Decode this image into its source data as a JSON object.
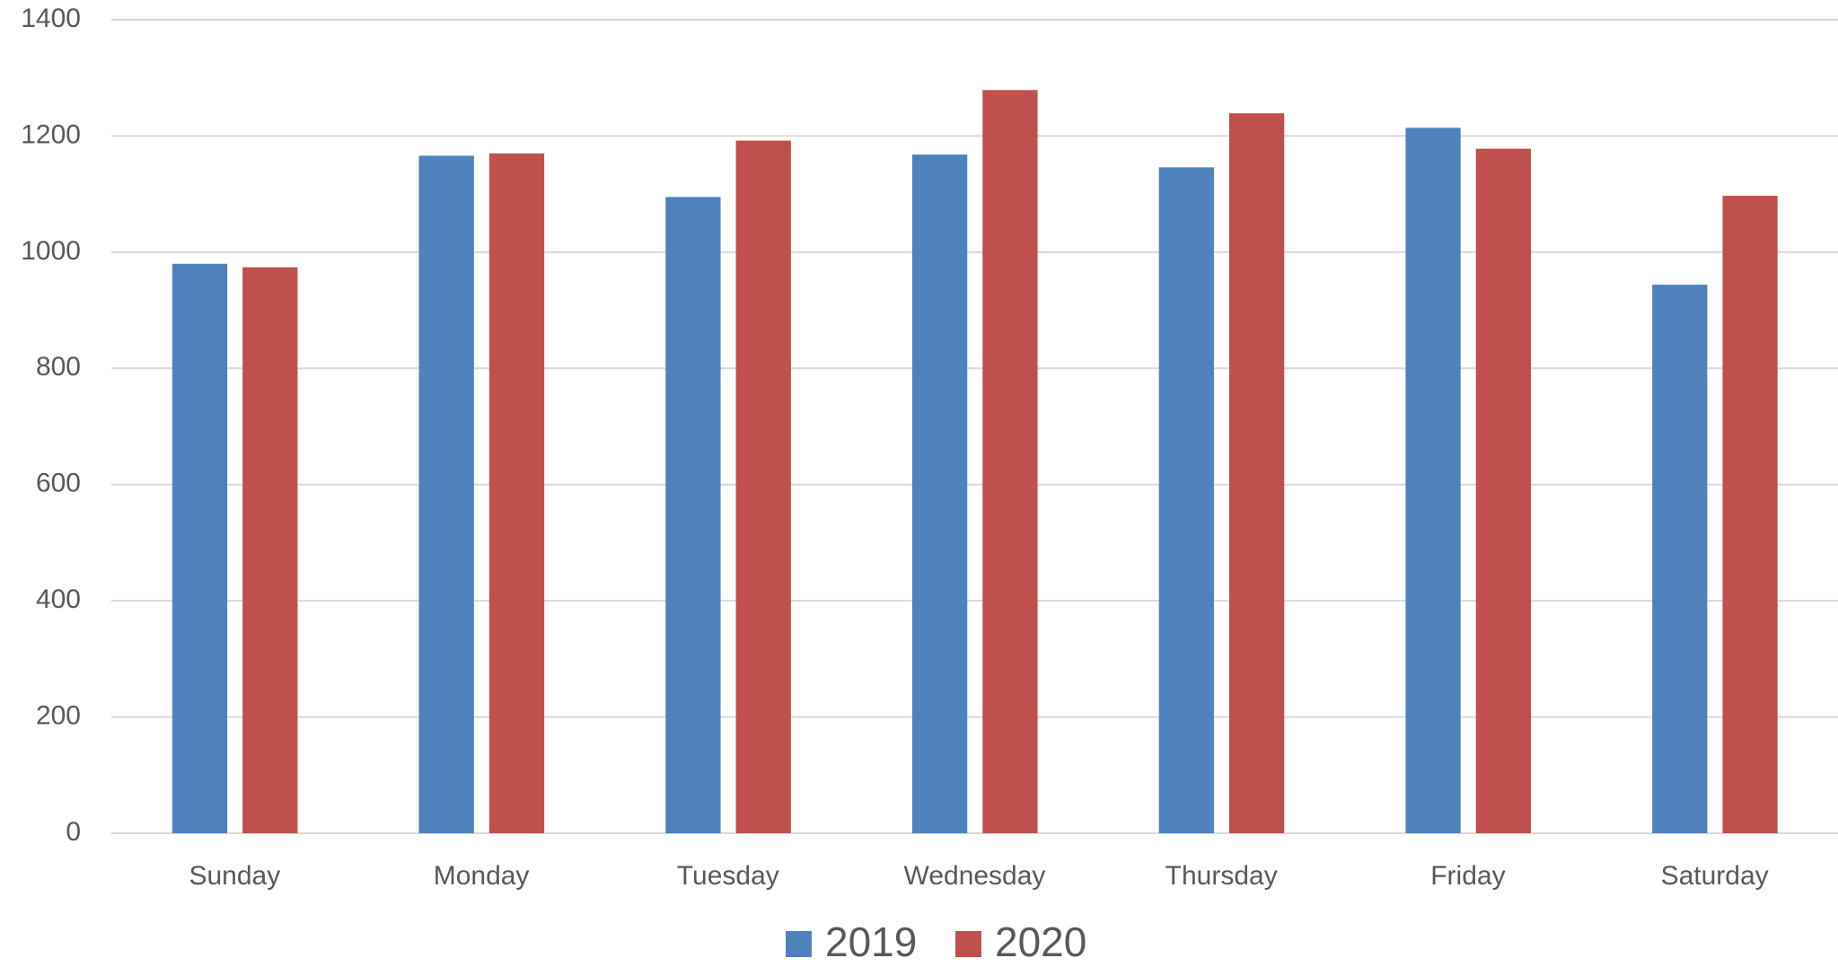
{
  "chart_data": {
    "type": "bar",
    "categories": [
      "Sunday",
      "Monday",
      "Tuesday",
      "Wednesday",
      "Thursday",
      "Friday",
      "Saturday"
    ],
    "series": [
      {
        "name": "2019",
        "color": "#4f81bd",
        "values": [
          980,
          1166,
          1095,
          1168,
          1146,
          1214,
          944
        ]
      },
      {
        "name": "2020",
        "color": "#c0504d",
        "values": [
          974,
          1170,
          1192,
          1279,
          1239,
          1178,
          1097
        ]
      }
    ],
    "ylim": [
      0,
      1400
    ],
    "yticks": [
      0,
      200,
      400,
      600,
      800,
      1000,
      1200,
      1400
    ],
    "grid": true,
    "legend": "bottom"
  }
}
